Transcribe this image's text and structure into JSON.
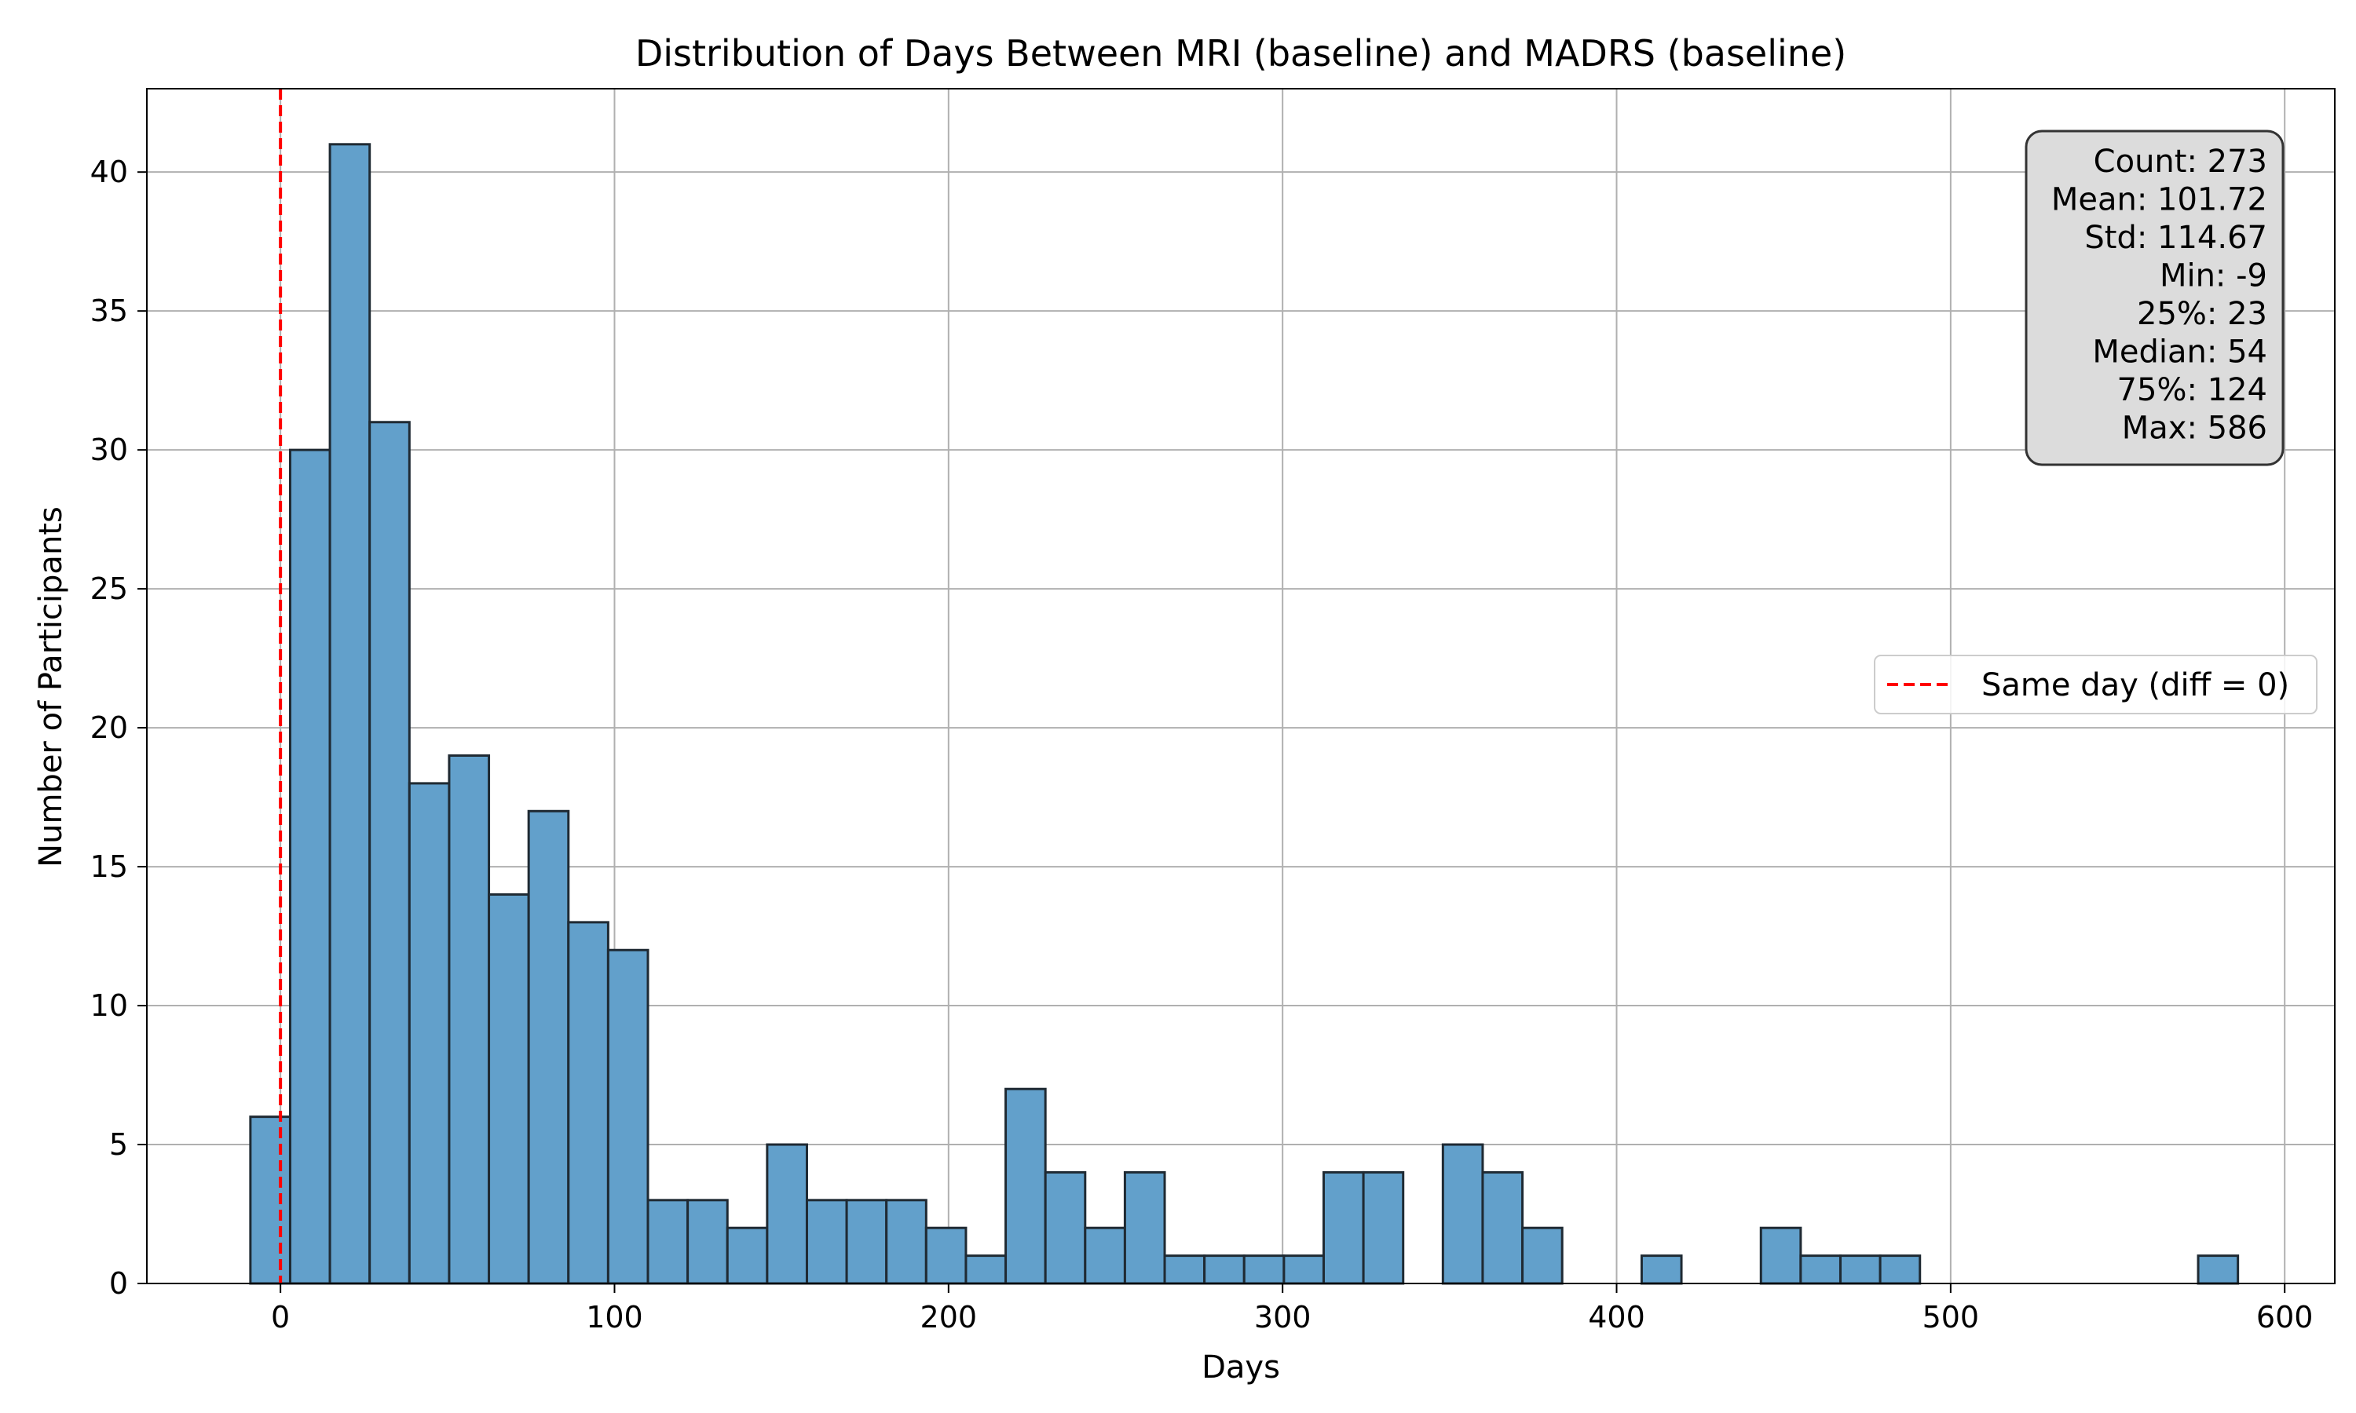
{
  "chart_data": {
    "type": "bar",
    "title": "Distribution of Days Between MRI (baseline) and MADRS (baseline)",
    "xlabel": "Days",
    "ylabel": "Number of Participants",
    "xlim": [
      -40,
      615
    ],
    "ylim": [
      0,
      43
    ],
    "xticks": [
      0,
      100,
      200,
      300,
      400,
      500,
      600
    ],
    "yticks": [
      0,
      5,
      10,
      15,
      20,
      25,
      30,
      35,
      40
    ],
    "grid": true,
    "bins": {
      "start": -9,
      "width": 11.9,
      "counts": [
        6,
        30,
        41,
        31,
        18,
        19,
        14,
        17,
        13,
        12,
        3,
        3,
        2,
        5,
        3,
        3,
        3,
        2,
        1,
        7,
        4,
        2,
        4,
        1,
        1,
        1,
        1,
        4,
        4,
        0,
        5,
        4,
        2,
        0,
        0,
        1,
        0,
        0,
        2,
        1,
        1,
        1,
        0,
        0,
        0,
        0,
        0,
        0,
        0,
        1
      ]
    },
    "bar_color": "#62a0cb",
    "bar_edge_color": "#1f2a33",
    "reference_line": {
      "x": 0,
      "label": "Same day (diff = 0)",
      "color": "#ff0000"
    },
    "legend_position": "center-right",
    "stats_box": [
      "Count: 273",
      "Mean: 101.72",
      "Std: 114.67",
      "Min: -9",
      "25%: 23",
      "Median: 54",
      "75%: 124",
      "Max: 586"
    ]
  }
}
